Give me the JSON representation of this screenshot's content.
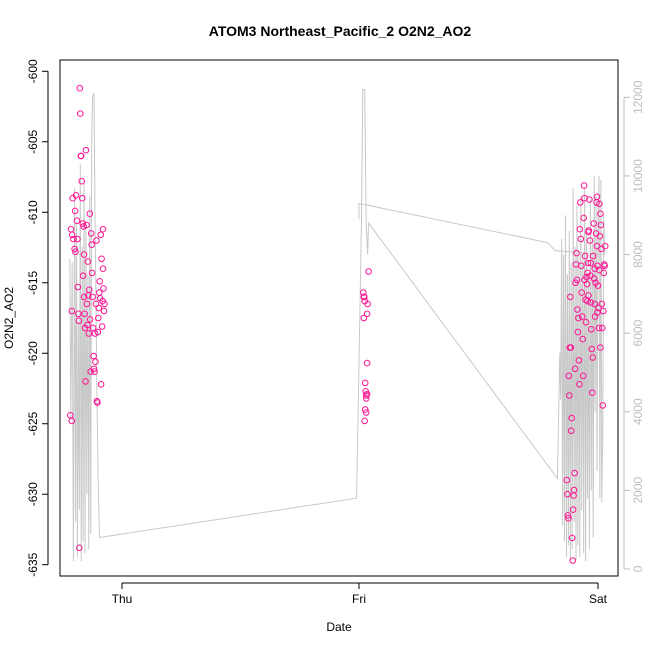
{
  "chart_data": {
    "type": "scatter",
    "title": "ATOM3 Northeast_Pacific_2 O2N2_AO2",
    "xlabel": "Date",
    "ylabel": "O2N2_AO2",
    "x_ticks": [
      "Thu",
      "Fri",
      "Sat"
    ],
    "ylim": [
      -635.8,
      -599.2
    ],
    "y_ticks": [
      -635,
      -630,
      -625,
      -620,
      -615,
      -610,
      -605,
      -600
    ],
    "y2_ticks": [
      0,
      2000,
      4000,
      6000,
      8000,
      10000,
      12000
    ],
    "y2lim": [
      -180,
      12950
    ],
    "grid": false,
    "legend": "none",
    "colors": {
      "points": "#ff1493",
      "altitude_line": "#c8c8c8",
      "right_axis": "#bdbdbd"
    },
    "series": [
      {
        "kind": "points",
        "points": [
          [
            -0.218,
            -624.4
          ],
          [
            -0.212,
            -624.8
          ],
          [
            -0.215,
            -611.2
          ],
          [
            -0.21,
            -611.6
          ],
          [
            -0.205,
            -611.9
          ],
          [
            -0.208,
            -609.0
          ],
          [
            -0.212,
            -617.0
          ],
          [
            -0.2,
            -612.6
          ],
          [
            -0.196,
            -612.8
          ],
          [
            -0.198,
            -609.9
          ],
          [
            -0.194,
            -608.8
          ],
          [
            -0.19,
            -610.6
          ],
          [
            -0.188,
            -611.9
          ],
          [
            -0.186,
            -615.3
          ],
          [
            -0.184,
            -617.2
          ],
          [
            -0.182,
            -617.7
          ],
          [
            -0.18,
            -633.8
          ],
          [
            -0.178,
            -601.2
          ],
          [
            -0.176,
            -603.0
          ],
          [
            -0.174,
            -606.0
          ],
          [
            -0.172,
            -606.0
          ],
          [
            -0.17,
            -607.8
          ],
          [
            -0.168,
            -609.0
          ],
          [
            -0.166,
            -610.8
          ],
          [
            -0.164,
            -614.5
          ],
          [
            -0.162,
            -611.0
          ],
          [
            -0.16,
            -616.0
          ],
          [
            -0.158,
            -617.2
          ],
          [
            -0.156,
            -618.2
          ],
          [
            -0.154,
            -622.0
          ],
          [
            -0.152,
            -605.6
          ],
          [
            -0.15,
            -610.9
          ],
          [
            -0.148,
            -616.5
          ],
          [
            -0.146,
            -618.0
          ],
          [
            -0.144,
            -613.5
          ],
          [
            -0.142,
            -615.9
          ],
          [
            -0.14,
            -618.6
          ],
          [
            -0.138,
            -615.5
          ],
          [
            -0.136,
            -610.1
          ],
          [
            -0.134,
            -617.6
          ],
          [
            -0.132,
            -621.3
          ],
          [
            -0.13,
            -611.5
          ],
          [
            -0.128,
            -612.3
          ],
          [
            -0.126,
            -614.3
          ],
          [
            -0.124,
            -616.0
          ],
          [
            -0.122,
            -618.2
          ],
          [
            -0.12,
            -620.2
          ],
          [
            -0.118,
            -621.1
          ],
          [
            -0.116,
            -621.3
          ],
          [
            -0.114,
            -618.6
          ],
          [
            -0.112,
            -620.6
          ],
          [
            -0.11,
            -616.5
          ],
          [
            -0.108,
            -612.0
          ],
          [
            -0.106,
            -623.4
          ],
          [
            -0.104,
            -623.5
          ],
          [
            -0.102,
            -618.5
          ],
          [
            -0.1,
            -617.5
          ],
          [
            -0.098,
            -616.8
          ],
          [
            -0.096,
            -615.7
          ],
          [
            -0.094,
            -614.9
          ],
          [
            -0.092,
            -616.1
          ],
          [
            -0.09,
            -611.6
          ],
          [
            -0.088,
            -622.2
          ],
          [
            -0.086,
            -613.3
          ],
          [
            -0.084,
            -618.1
          ],
          [
            -0.082,
            -616.3
          ],
          [
            -0.08,
            -611.2
          ],
          [
            -0.08,
            -614.0
          ],
          [
            -0.078,
            -615.4
          ],
          [
            -0.076,
            -617.0
          ],
          [
            -0.074,
            -616.5
          ],
          [
            -0.16,
            -613.0
          ],
          [
            1.018,
            -615.7
          ],
          [
            1.02,
            -616.0
          ],
          [
            1.022,
            -616.0
          ],
          [
            1.024,
            -616.3
          ],
          [
            1.02,
            -617.5
          ],
          [
            1.026,
            -622.1
          ],
          [
            1.028,
            -622.7
          ],
          [
            1.03,
            -623.0
          ],
          [
            1.034,
            -622.9
          ],
          [
            1.03,
            -623.2
          ],
          [
            1.026,
            -624.0
          ],
          [
            1.03,
            -624.2
          ],
          [
            1.024,
            -624.8
          ],
          [
            1.034,
            -620.7
          ],
          [
            1.04,
            -614.2
          ],
          [
            1.036,
            -616.5
          ],
          [
            1.034,
            -617.2
          ],
          [
            1.87,
            -629.0
          ],
          [
            1.872,
            -630.0
          ],
          [
            1.874,
            -631.5
          ],
          [
            1.876,
            -631.7
          ],
          [
            1.878,
            -621.6
          ],
          [
            1.88,
            -623.0
          ],
          [
            1.882,
            -619.6
          ],
          [
            1.884,
            -616.0
          ],
          [
            1.886,
            -619.6
          ],
          [
            1.888,
            -625.5
          ],
          [
            1.89,
            -624.6
          ],
          [
            1.892,
            -633.1
          ],
          [
            1.894,
            -634.7
          ],
          [
            1.896,
            -631.1
          ],
          [
            1.898,
            -630.1
          ],
          [
            1.9,
            -629.7
          ],
          [
            1.902,
            -628.5
          ],
          [
            1.904,
            -621.1
          ],
          [
            1.906,
            -615.0
          ],
          [
            1.908,
            -613.7
          ],
          [
            1.91,
            -612.9
          ],
          [
            1.912,
            -614.8
          ],
          [
            1.914,
            -616.9
          ],
          [
            1.916,
            -618.5
          ],
          [
            1.918,
            -617.5
          ],
          [
            1.92,
            -620.5
          ],
          [
            1.922,
            -622.2
          ],
          [
            1.924,
            -611.2
          ],
          [
            1.926,
            -609.3
          ],
          [
            1.928,
            -611.9
          ],
          [
            1.93,
            -613.8
          ],
          [
            1.932,
            -615.7
          ],
          [
            1.934,
            -617.4
          ],
          [
            1.936,
            -619.0
          ],
          [
            1.938,
            -621.6
          ],
          [
            1.94,
            -610.4
          ],
          [
            1.942,
            -608.1
          ],
          [
            1.944,
            -614.8
          ],
          [
            1.946,
            -613.1
          ],
          [
            1.948,
            -616.2
          ],
          [
            1.95,
            -617.8
          ],
          [
            1.952,
            -614.6
          ],
          [
            1.954,
            -615.1
          ],
          [
            1.956,
            -614.3
          ],
          [
            1.958,
            -613.6
          ],
          [
            1.96,
            -615.9
          ],
          [
            1.962,
            -611.3
          ],
          [
            1.964,
            -609.1
          ],
          [
            1.966,
            -612.0
          ],
          [
            1.968,
            -614.5
          ],
          [
            1.97,
            -616.4
          ],
          [
            1.972,
            -618.3
          ],
          [
            1.974,
            -619.7
          ],
          [
            1.976,
            -622.8
          ],
          [
            1.978,
            -620.3
          ],
          [
            1.98,
            -613.1
          ],
          [
            1.982,
            -610.8
          ],
          [
            1.984,
            -614.7
          ],
          [
            1.986,
            -616.5
          ],
          [
            1.988,
            -617.4
          ],
          [
            1.99,
            -615.0
          ],
          [
            1.992,
            -611.5
          ],
          [
            1.994,
            -609.3
          ],
          [
            1.996,
            -612.4
          ],
          [
            1.998,
            -613.8
          ],
          [
            2.0,
            -615.2
          ],
          [
            2.002,
            -616.8
          ],
          [
            2.004,
            -618.2
          ],
          [
            2.006,
            -614.1
          ],
          [
            2.008,
            -611.7
          ],
          [
            2.01,
            -610.1
          ],
          [
            2.012,
            -610.9
          ],
          [
            2.014,
            -612.6
          ],
          [
            2.016,
            -616.5
          ],
          [
            2.018,
            -618.2
          ],
          [
            2.02,
            -623.7
          ],
          [
            2.022,
            -617.0
          ],
          [
            2.024,
            -614.3
          ],
          [
            2.026,
            -613.7
          ],
          [
            2.028,
            -613.8
          ],
          [
            2.03,
            -612.4
          ],
          [
            2.006,
            -609.4
          ],
          [
            1.996,
            -608.9
          ],
          [
            1.944,
            -609.0
          ],
          [
            1.96,
            -611.4
          ],
          [
            1.97,
            -613.6
          ],
          [
            1.986,
            -614.0
          ],
          [
            1.956,
            -616.3
          ],
          [
            1.998,
            -617.1
          ],
          [
            2.01,
            -619.6
          ]
        ]
      },
      {
        "kind": "altitude_line",
        "axis": "right",
        "points": [
          [
            -0.22,
            7900
          ],
          [
            -0.216,
            3800
          ],
          [
            -0.21,
            7800
          ],
          [
            -0.205,
            200
          ],
          [
            -0.2,
            9700
          ],
          [
            -0.196,
            1200
          ],
          [
            -0.192,
            8800
          ],
          [
            -0.188,
            300
          ],
          [
            -0.184,
            6300
          ],
          [
            -0.18,
            1500
          ],
          [
            -0.176,
            10300
          ],
          [
            -0.172,
            200
          ],
          [
            -0.168,
            8200
          ],
          [
            -0.164,
            700
          ],
          [
            -0.16,
            9900
          ],
          [
            -0.156,
            400
          ],
          [
            -0.152,
            8700
          ],
          [
            -0.148,
            1900
          ],
          [
            -0.144,
            7500
          ],
          [
            -0.14,
            500
          ],
          [
            -0.136,
            9500
          ],
          [
            -0.132,
            900
          ],
          [
            -0.128,
            11000
          ],
          [
            -0.124,
            12000
          ],
          [
            -0.118,
            12100
          ],
          [
            -0.114,
            9000
          ],
          [
            -0.11,
            7000
          ],
          [
            -0.106,
            4500
          ],
          [
            -0.1,
            2000
          ],
          [
            -0.095,
            800
          ],
          [
            0.99,
            1800
          ],
          [
            1.01,
            8700
          ],
          [
            1.016,
            12200
          ],
          [
            1.024,
            12200
          ],
          [
            1.03,
            8800
          ],
          [
            1.036,
            8000
          ],
          [
            1.04,
            8800
          ],
          [
            1.83,
            2300
          ],
          [
            1.84,
            5500
          ],
          [
            1.844,
            4300
          ],
          [
            1.848,
            8400
          ],
          [
            1.852,
            1100
          ],
          [
            1.856,
            8000
          ],
          [
            1.86,
            700
          ],
          [
            1.864,
            9000
          ],
          [
            1.868,
            300
          ],
          [
            1.872,
            7500
          ],
          [
            1.876,
            600
          ],
          [
            1.88,
            8600
          ],
          [
            1.884,
            200
          ],
          [
            1.888,
            7800
          ],
          [
            1.892,
            500
          ],
          [
            1.896,
            9700
          ],
          [
            1.9,
            1200
          ],
          [
            1.904,
            8200
          ],
          [
            1.908,
            200
          ],
          [
            1.912,
            9300
          ],
          [
            1.916,
            600
          ],
          [
            1.92,
            8000
          ],
          [
            1.924,
            300
          ],
          [
            1.928,
            9500
          ],
          [
            1.932,
            1500
          ],
          [
            1.936,
            7900
          ],
          [
            1.94,
            400
          ],
          [
            1.944,
            9700
          ],
          [
            1.948,
            200
          ],
          [
            1.952,
            8700
          ],
          [
            1.956,
            1800
          ],
          [
            1.96,
            7400
          ],
          [
            1.964,
            500
          ],
          [
            1.968,
            9400
          ],
          [
            1.972,
            2000
          ],
          [
            1.976,
            8300
          ],
          [
            1.98,
            800
          ],
          [
            1.984,
            10000
          ],
          [
            1.988,
            4000
          ],
          [
            1.992,
            9500
          ],
          [
            1.996,
            2500
          ],
          [
            2.0,
            8700
          ],
          [
            2.004,
            10000
          ],
          [
            2.008,
            1800
          ],
          [
            2.012,
            9900
          ],
          [
            2.016,
            1700
          ],
          [
            2.02,
            3500
          ],
          [
            2.024,
            9000
          ],
          [
            2.028,
            8000
          ],
          [
            1.82,
            8100
          ],
          [
            1.79,
            8300
          ],
          [
            1.0,
            9300
          ],
          [
            1.0,
            8900
          ]
        ]
      }
    ]
  }
}
